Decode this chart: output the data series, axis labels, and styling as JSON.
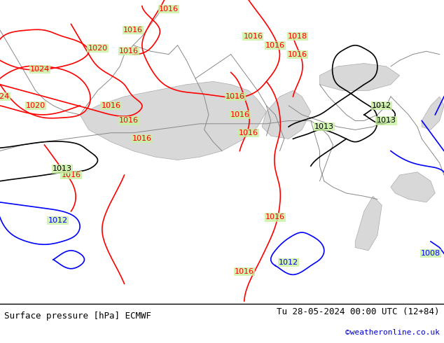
{
  "title_left": "Surface pressure [hPa] ECMWF",
  "title_right": "Tu 28-05-2024 00:00 UTC (12+84)",
  "credit": "©weatheronline.co.uk",
  "bg_color": "#c8f0a0",
  "land_color": "#c8f0a0",
  "sea_color": "#e8e8e8",
  "contour_color_red": "#ff0000",
  "contour_color_black": "#000000",
  "contour_color_blue": "#0000ff",
  "label_fontsize": 9,
  "title_fontsize": 9,
  "figsize": [
    6.34,
    4.9
  ],
  "dpi": 100
}
